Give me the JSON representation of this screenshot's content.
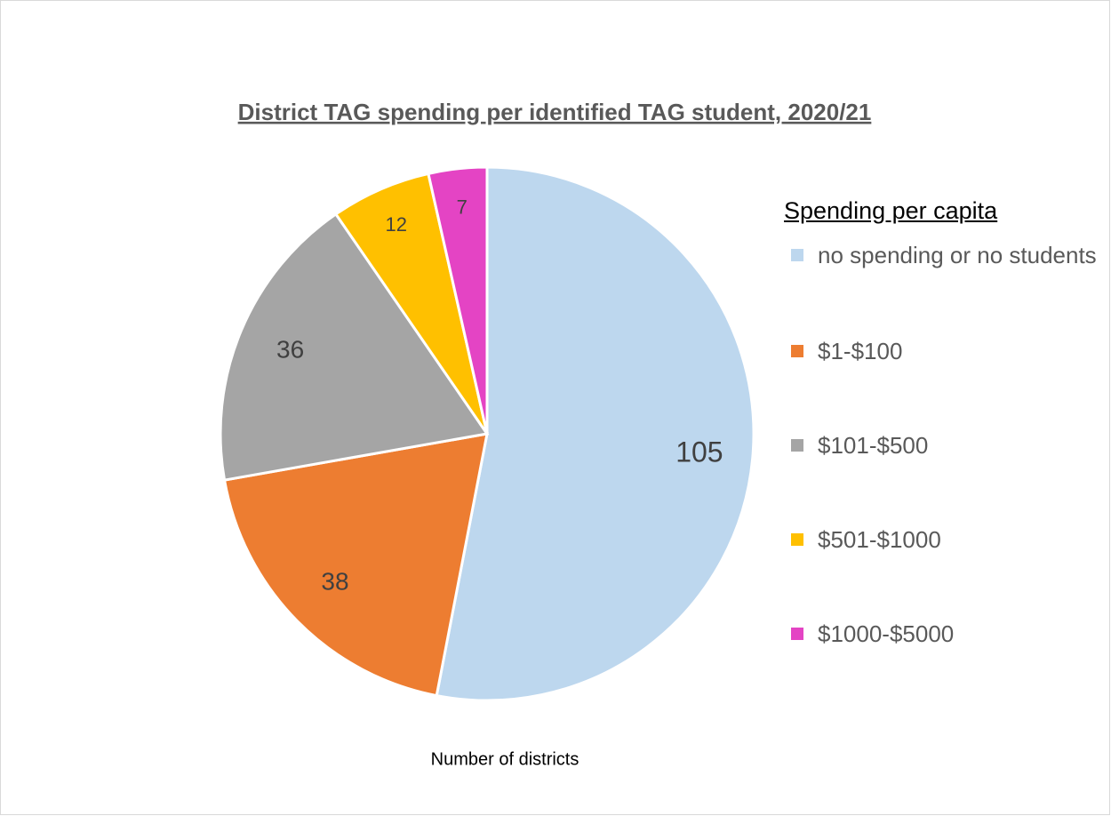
{
  "chart_data": {
    "type": "pie",
    "title": "District TAG spending per identified TAG student, 2020/21",
    "legend_title": "Spending per capita",
    "x_label": "Number of districts",
    "categories": [
      "no spending or no students",
      "$1-$100",
      "$101-$500",
      "$501-$1000",
      "$1000-$5000"
    ],
    "values": [
      105,
      38,
      36,
      12,
      7
    ],
    "colors": [
      "#BDD7EE",
      "#ED7D31",
      "#A5A5A5",
      "#FFC000",
      "#E444C4"
    ],
    "legend": "right"
  }
}
